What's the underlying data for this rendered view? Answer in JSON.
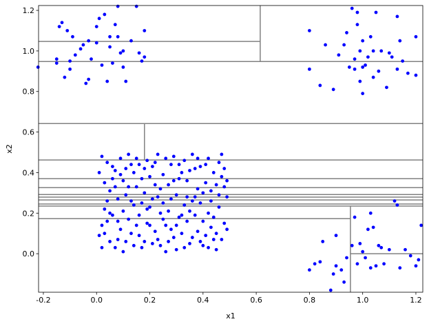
{
  "chart_data": {
    "type": "scatter",
    "x_label": "x1",
    "y_label": "x2",
    "xlim": [
      -0.218,
      1.226
    ],
    "ylim": [
      -0.19,
      1.224
    ],
    "xticks": [
      -0.2,
      {
        "value": 0,
        "label": "0.0"
      },
      0.2,
      0.4,
      0.6,
      0.8,
      {
        "value": 1,
        "label": "1.0"
      },
      1.2
    ],
    "yticks": [
      {
        "value": 0,
        "label": "0.0"
      },
      0.2,
      0.4,
      0.6,
      0.8,
      {
        "value": 1,
        "label": "1.0"
      },
      1.2
    ],
    "grid": false,
    "segment_color": "#808080",
    "segments": [
      {
        "x": [
          0.615,
          0.615
        ],
        "y": [
          0.948,
          1.224
        ]
      },
      {
        "x": [
          -0.218,
          0.615
        ],
        "y": [
          1.047,
          1.047
        ]
      },
      {
        "x": [
          -0.218,
          1.226
        ],
        "y": [
          0.948,
          0.948
        ]
      },
      {
        "x": [
          -0.218,
          1.226
        ],
        "y": [
          0.642,
          0.642
        ]
      },
      {
        "x": [
          0.18,
          0.18
        ],
        "y": [
          0.462,
          0.642
        ]
      },
      {
        "x": [
          -0.218,
          1.226
        ],
        "y": [
          0.462,
          0.462
        ]
      },
      {
        "x": [
          -0.218,
          1.226
        ],
        "y": [
          0.37,
          0.37
        ]
      },
      {
        "x": [
          -0.218,
          1.226
        ],
        "y": [
          0.326,
          0.326
        ]
      },
      {
        "x": [
          -0.218,
          1.226
        ],
        "y": [
          0.292,
          0.292
        ]
      },
      {
        "x": [
          -0.218,
          1.226
        ],
        "y": [
          0.279,
          0.279
        ]
      },
      {
        "x": [
          -0.218,
          1.226
        ],
        "y": [
          0.265,
          0.265
        ]
      },
      {
        "x": [
          -0.218,
          1.226
        ],
        "y": [
          0.245,
          0.245
        ]
      },
      {
        "x": [
          -0.218,
          1.226
        ],
        "y": [
          0.235,
          0.235
        ]
      },
      {
        "x": [
          -0.218,
          0.954
        ],
        "y": [
          0.173,
          0.173
        ]
      },
      {
        "x": [
          0.954,
          0.954
        ],
        "y": [
          -0.19,
          0.235
        ]
      },
      {
        "x": [
          0.954,
          1.226
        ],
        "y": [
          0,
          0
        ]
      }
    ],
    "series": [
      {
        "color": "#0000ff",
        "points": [
          [
            -0.22,
            0.92
          ],
          [
            -0.15,
            0.94
          ],
          [
            -0.15,
            0.96
          ],
          [
            -0.14,
            1.12
          ],
          [
            -0.13,
            1.14
          ],
          [
            -0.12,
            0.87
          ],
          [
            -0.11,
            1.1
          ],
          [
            -0.1,
            0.91
          ],
          [
            -0.1,
            0.95
          ],
          [
            -0.09,
            1.07
          ],
          [
            -0.08,
            0.98
          ],
          [
            -0.06,
            1.01
          ],
          [
            -0.05,
            1.03
          ],
          [
            -0.04,
            0.84
          ],
          [
            -0.03,
            0.86
          ],
          [
            -0.03,
            1.05
          ],
          [
            -0.02,
            0.96
          ],
          [
            0.0,
            1.12
          ],
          [
            0.0,
            1.04
          ],
          [
            0.01,
            1.16
          ],
          [
            0.02,
            0.93
          ],
          [
            0.03,
            1.18
          ],
          [
            0.04,
            0.85
          ],
          [
            0.05,
            1.02
          ],
          [
            0.06,
            0.94
          ],
          [
            0.07,
            1.13
          ],
          [
            0.08,
            1.07
          ],
          [
            0.09,
            0.99
          ],
          [
            0.1,
            0.92
          ],
          [
            0.11,
            0.85
          ],
          [
            0.13,
            1.05
          ],
          [
            0.15,
            1.22
          ],
          [
            0.16,
            0.99
          ],
          [
            0.17,
            0.95
          ],
          [
            0.18,
            0.97
          ],
          [
            0.18,
            1.1
          ],
          [
            0.1,
            1.0
          ],
          [
            0.05,
            1.07
          ],
          [
            0.08,
            1.22
          ],
          [
            0.8,
            0.91
          ],
          [
            0.8,
            1.1
          ],
          [
            0.84,
            0.83
          ],
          [
            0.86,
            1.03
          ],
          [
            0.89,
            0.81
          ],
          [
            0.91,
            0.98
          ],
          [
            0.93,
            1.03
          ],
          [
            0.94,
            1.09
          ],
          [
            0.95,
            0.92
          ],
          [
            0.96,
            1.21
          ],
          [
            0.97,
            0.91
          ],
          [
            0.98,
            1.13
          ],
          [
            0.99,
            0.85
          ],
          [
            0.99,
            1.0
          ],
          [
            1.0,
            0.79
          ],
          [
            1.0,
            1.05
          ],
          [
            1.01,
            0.93
          ],
          [
            1.02,
            0.97
          ],
          [
            1.03,
            1.07
          ],
          [
            1.04,
            0.87
          ],
          [
            1.05,
            1.19
          ],
          [
            1.06,
            0.9
          ],
          [
            1.07,
            1.0
          ],
          [
            1.09,
            0.82
          ],
          [
            1.1,
            0.99
          ],
          [
            1.11,
            0.97
          ],
          [
            1.13,
            0.91
          ],
          [
            1.13,
            1.17
          ],
          [
            1.14,
            1.05
          ],
          [
            1.15,
            0.95
          ],
          [
            1.17,
            0.89
          ],
          [
            1.2,
            0.88
          ],
          [
            1.2,
            1.07
          ],
          [
            0.97,
            0.96
          ],
          [
            1.0,
            0.92
          ],
          [
            1.04,
            1.0
          ],
          [
            0.98,
            1.19
          ],
          [
            0.8,
            -0.08
          ],
          [
            0.82,
            -0.05
          ],
          [
            0.84,
            -0.04
          ],
          [
            0.85,
            0.06
          ],
          [
            0.88,
            -0.18
          ],
          [
            0.89,
            -0.1
          ],
          [
            0.9,
            -0.06
          ],
          [
            0.9,
            0.09
          ],
          [
            0.92,
            -0.08
          ],
          [
            0.93,
            -0.14
          ],
          [
            0.94,
            -0.02
          ],
          [
            0.96,
            0.04
          ],
          [
            0.97,
            0.18
          ],
          [
            0.98,
            -0.05
          ],
          [
            0.99,
            0.05
          ],
          [
            1.0,
            0.01
          ],
          [
            1.01,
            -0.02
          ],
          [
            1.02,
            0.12
          ],
          [
            1.03,
            0.2
          ],
          [
            1.04,
            0.13
          ],
          [
            1.05,
            -0.06
          ],
          [
            1.06,
            0.04
          ],
          [
            1.07,
            0.03
          ],
          [
            1.08,
            -0.05
          ],
          [
            1.1,
            0.02
          ],
          [
            1.12,
            0.26
          ],
          [
            1.13,
            0.24
          ],
          [
            1.14,
            -0.07
          ],
          [
            1.16,
            0.02
          ],
          [
            1.18,
            -0.01
          ],
          [
            1.2,
            -0.06
          ],
          [
            1.21,
            -0.03
          ],
          [
            1.22,
            0.14
          ],
          [
            1.03,
            -0.07
          ],
          [
            0.02,
            0.48
          ],
          [
            0.05,
            0.31
          ],
          [
            0.09,
            0.12
          ],
          [
            0.13,
            0.44
          ],
          [
            0.17,
            0.03
          ],
          [
            0.21,
            0.27
          ],
          [
            0.25,
            0.39
          ],
          [
            0.29,
            0.08
          ],
          [
            0.33,
            0.46
          ],
          [
            0.37,
            0.19
          ],
          [
            0.41,
            0.35
          ],
          [
            0.45,
            0.02
          ],
          [
            0.49,
            0.28
          ],
          [
            0.03,
            0.22
          ],
          [
            0.07,
            0.41
          ],
          [
            0.11,
            0.06
          ],
          [
            0.15,
            0.33
          ],
          [
            0.19,
            0.15
          ],
          [
            0.23,
            0.49
          ],
          [
            0.27,
            0.21
          ],
          [
            0.31,
            0.37
          ],
          [
            0.35,
            0.05
          ],
          [
            0.39,
            0.43
          ],
          [
            0.43,
            0.13
          ],
          [
            0.47,
            0.38
          ],
          [
            0.01,
            0.09
          ],
          [
            0.06,
            0.19
          ],
          [
            0.1,
            0.36
          ],
          [
            0.14,
            0.24
          ],
          [
            0.18,
            0.42
          ],
          [
            0.22,
            0.11
          ],
          [
            0.26,
            0.01
          ],
          [
            0.3,
            0.29
          ],
          [
            0.34,
            0.16
          ],
          [
            0.38,
            0.32
          ],
          [
            0.42,
            0.47
          ],
          [
            0.46,
            0.23
          ],
          [
            0.04,
            0.45
          ],
          [
            0.08,
            0.27
          ],
          [
            0.12,
            0.17
          ],
          [
            0.16,
            0.09
          ],
          [
            0.2,
            0.38
          ],
          [
            0.24,
            0.2
          ],
          [
            0.28,
            0.44
          ],
          [
            0.32,
            0.1
          ],
          [
            0.36,
            0.26
          ],
          [
            0.4,
            0.04
          ],
          [
            0.44,
            0.4
          ],
          [
            0.48,
            0.15
          ],
          [
            0.03,
            0.35
          ],
          [
            0.07,
            0.03
          ],
          [
            0.11,
            0.29
          ],
          [
            0.15,
            0.47
          ],
          [
            0.19,
            0.22
          ],
          [
            0.23,
            0.07
          ],
          [
            0.27,
            0.34
          ],
          [
            0.31,
            0.18
          ],
          [
            0.35,
            0.41
          ],
          [
            0.39,
            0.25
          ],
          [
            0.43,
            0.31
          ],
          [
            0.47,
            0.07
          ],
          [
            0.02,
            0.14
          ],
          [
            0.06,
            0.43
          ],
          [
            0.1,
            0.21
          ],
          [
            0.14,
            0.04
          ],
          [
            0.18,
            0.3
          ],
          [
            0.22,
            0.45
          ],
          [
            0.26,
            0.14
          ],
          [
            0.3,
            0.02
          ],
          [
            0.34,
            0.36
          ],
          [
            0.38,
            0.11
          ],
          [
            0.42,
            0.2
          ],
          [
            0.46,
            0.45
          ],
          [
            0.05,
            0.06
          ],
          [
            0.09,
            0.39
          ],
          [
            0.13,
            0.26
          ],
          [
            0.17,
            0.37
          ],
          [
            0.21,
            0.05
          ],
          [
            0.25,
            0.25
          ],
          [
            0.29,
            0.48
          ],
          [
            0.33,
            0.24
          ],
          [
            0.37,
            0.42
          ],
          [
            0.41,
            0.09
          ],
          [
            0.45,
            0.34
          ],
          [
            0.49,
            0.12
          ],
          [
            0.04,
            0.26
          ],
          [
            0.08,
            0.16
          ],
          [
            0.12,
            0.49
          ],
          [
            0.16,
            0.19
          ],
          [
            0.2,
            0.14
          ],
          [
            0.24,
            0.32
          ],
          [
            0.28,
            0.12
          ],
          [
            0.32,
            0.4
          ],
          [
            0.36,
            0.08
          ],
          [
            0.4,
            0.3
          ],
          [
            0.44,
            0.18
          ],
          [
            0.48,
            0.42
          ],
          [
            0.01,
            0.4
          ],
          [
            0.05,
            0.2
          ],
          [
            0.09,
            0.47
          ],
          [
            0.13,
            0.1
          ],
          [
            0.17,
            0.25
          ],
          [
            0.21,
            0.43
          ],
          [
            0.25,
            0.17
          ],
          [
            0.29,
            0.36
          ],
          [
            0.33,
            0.03
          ],
          [
            0.37,
            0.28
          ],
          [
            0.41,
            0.44
          ],
          [
            0.45,
            0.1
          ],
          [
            0.49,
            0.36
          ],
          [
            0.03,
            0.1
          ],
          [
            0.07,
            0.33
          ],
          [
            0.11,
            0.42
          ],
          [
            0.15,
            0.14
          ],
          [
            0.19,
            0.46
          ],
          [
            0.23,
            0.28
          ],
          [
            0.27,
            0.06
          ],
          [
            0.31,
            0.44
          ],
          [
            0.35,
            0.21
          ],
          [
            0.39,
            0.06
          ],
          [
            0.43,
            0.26
          ],
          [
            0.47,
            0.49
          ],
          [
            0.02,
            0.03
          ],
          [
            0.06,
            0.37
          ],
          [
            0.1,
            0.01
          ],
          [
            0.14,
            0.4
          ],
          [
            0.18,
            0.06
          ],
          [
            0.22,
            0.34
          ],
          [
            0.26,
            0.47
          ],
          [
            0.3,
            0.14
          ],
          [
            0.34,
            0.28
          ],
          [
            0.38,
            0.47
          ],
          [
            0.42,
            0.03
          ],
          [
            0.46,
            0.29
          ],
          [
            0.04,
            0.16
          ],
          [
            0.08,
            0.07
          ],
          [
            0.12,
            0.33
          ],
          [
            0.16,
            0.44
          ],
          [
            0.2,
            0.23
          ],
          [
            0.24,
            0.04
          ],
          [
            0.28,
            0.27
          ],
          [
            0.32,
            0.19
          ],
          [
            0.36,
            0.49
          ],
          [
            0.4,
            0.16
          ],
          [
            0.44,
            0.07
          ],
          [
            0.48,
            0.33
          ]
        ]
      }
    ]
  }
}
